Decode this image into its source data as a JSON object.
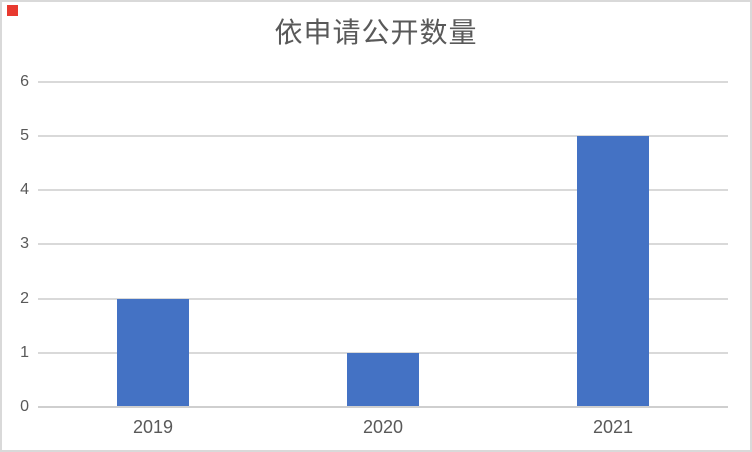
{
  "chart_data": {
    "type": "bar",
    "title": "依申请公开数量",
    "categories": [
      "2019",
      "2020",
      "2021"
    ],
    "values": [
      2,
      1,
      5
    ],
    "y_ticks": [
      "0",
      "1",
      "2",
      "3",
      "4",
      "5",
      "6"
    ],
    "ylim": [
      0,
      6
    ],
    "ytick_interval": 1,
    "xlabel": "",
    "ylabel": "",
    "grid": "on",
    "legend": "none",
    "bar_color": "#4472C4",
    "gridline_color": "#D9D9D9",
    "axis_line_color": "#CFCFCF",
    "label_color": "#595959",
    "title_color": "#595959",
    "frame_border_color": "#D9D9D9",
    "background_color": "#FFFFFF"
  },
  "corner_marker": {
    "color": "#E8392F"
  }
}
